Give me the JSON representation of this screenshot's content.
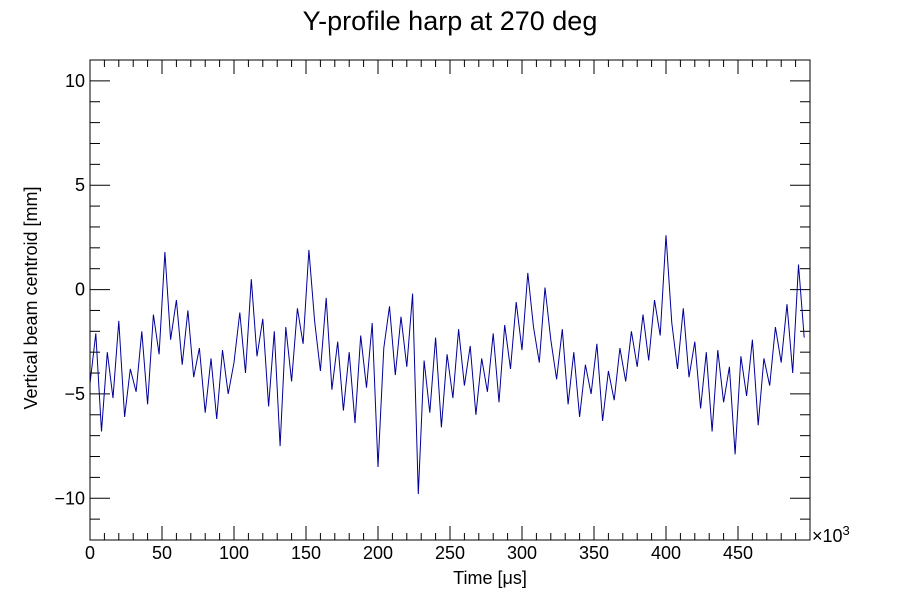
{
  "chart_data": {
    "type": "line",
    "title": "Y-profile harp at 270 deg",
    "xlabel": "Time [μs]",
    "ylabel": "Vertical beam centroid [mm]",
    "x_exponent_label": "×10",
    "x_exponent_power": "3",
    "xlim": [
      0,
      500
    ],
    "ylim": [
      -12,
      11
    ],
    "x_ticks": [
      0,
      50,
      100,
      150,
      200,
      250,
      300,
      350,
      400,
      450
    ],
    "x_tick_labels": [
      "0",
      "50",
      "100",
      "150",
      "200",
      "250",
      "300",
      "350",
      "400",
      "450"
    ],
    "y_ticks": [
      -10,
      -5,
      0,
      5,
      10
    ],
    "y_tick_labels": [
      "−10",
      "−5",
      "0",
      "5",
      "10"
    ],
    "grid": false,
    "series": [
      {
        "name": "centroid",
        "color": "#000099",
        "x_step": 4,
        "x_start": 0,
        "values": [
          -4.5,
          -2.1,
          -6.8,
          -3.0,
          -5.2,
          -1.5,
          -6.1,
          -3.8,
          -4.9,
          -2.0,
          -5.5,
          -1.2,
          -3.1,
          1.8,
          -2.4,
          -0.5,
          -3.6,
          -1.0,
          -4.2,
          -2.8,
          -5.9,
          -3.3,
          -6.2,
          -2.9,
          -5.0,
          -3.5,
          -1.1,
          -4.0,
          0.5,
          -3.2,
          -1.4,
          -5.6,
          -2.0,
          -7.5,
          -1.8,
          -4.4,
          -0.9,
          -2.6,
          1.9,
          -1.5,
          -3.9,
          -0.4,
          -4.8,
          -2.5,
          -5.8,
          -3.0,
          -6.4,
          -2.2,
          -4.7,
          -1.6,
          -8.5,
          -2.8,
          -0.8,
          -4.1,
          -1.3,
          -3.7,
          -0.2,
          -9.8,
          -3.4,
          -5.9,
          -2.3,
          -6.6,
          -3.1,
          -5.2,
          -1.9,
          -4.6,
          -2.7,
          -6.0,
          -3.3,
          -4.9,
          -2.1,
          -5.4,
          -1.7,
          -3.8,
          -0.6,
          -2.9,
          0.8,
          -1.8,
          -3.5,
          0.1,
          -2.4,
          -4.3,
          -1.9,
          -5.5,
          -3.0,
          -6.1,
          -3.6,
          -5.0,
          -2.6,
          -6.3,
          -3.9,
          -5.3,
          -2.8,
          -4.4,
          -2.0,
          -3.7,
          -1.2,
          -3.4,
          -0.5,
          -2.2,
          2.6,
          -1.6,
          -3.8,
          -0.9,
          -4.2,
          -2.5,
          -5.7,
          -3.0,
          -6.8,
          -2.9,
          -5.4,
          -3.7,
          -7.9,
          -3.2,
          -5.1,
          -2.4,
          -6.5,
          -3.3,
          -4.6,
          -1.8,
          -3.5,
          -0.7,
          -4.0,
          1.2,
          -2.3
        ]
      }
    ]
  }
}
